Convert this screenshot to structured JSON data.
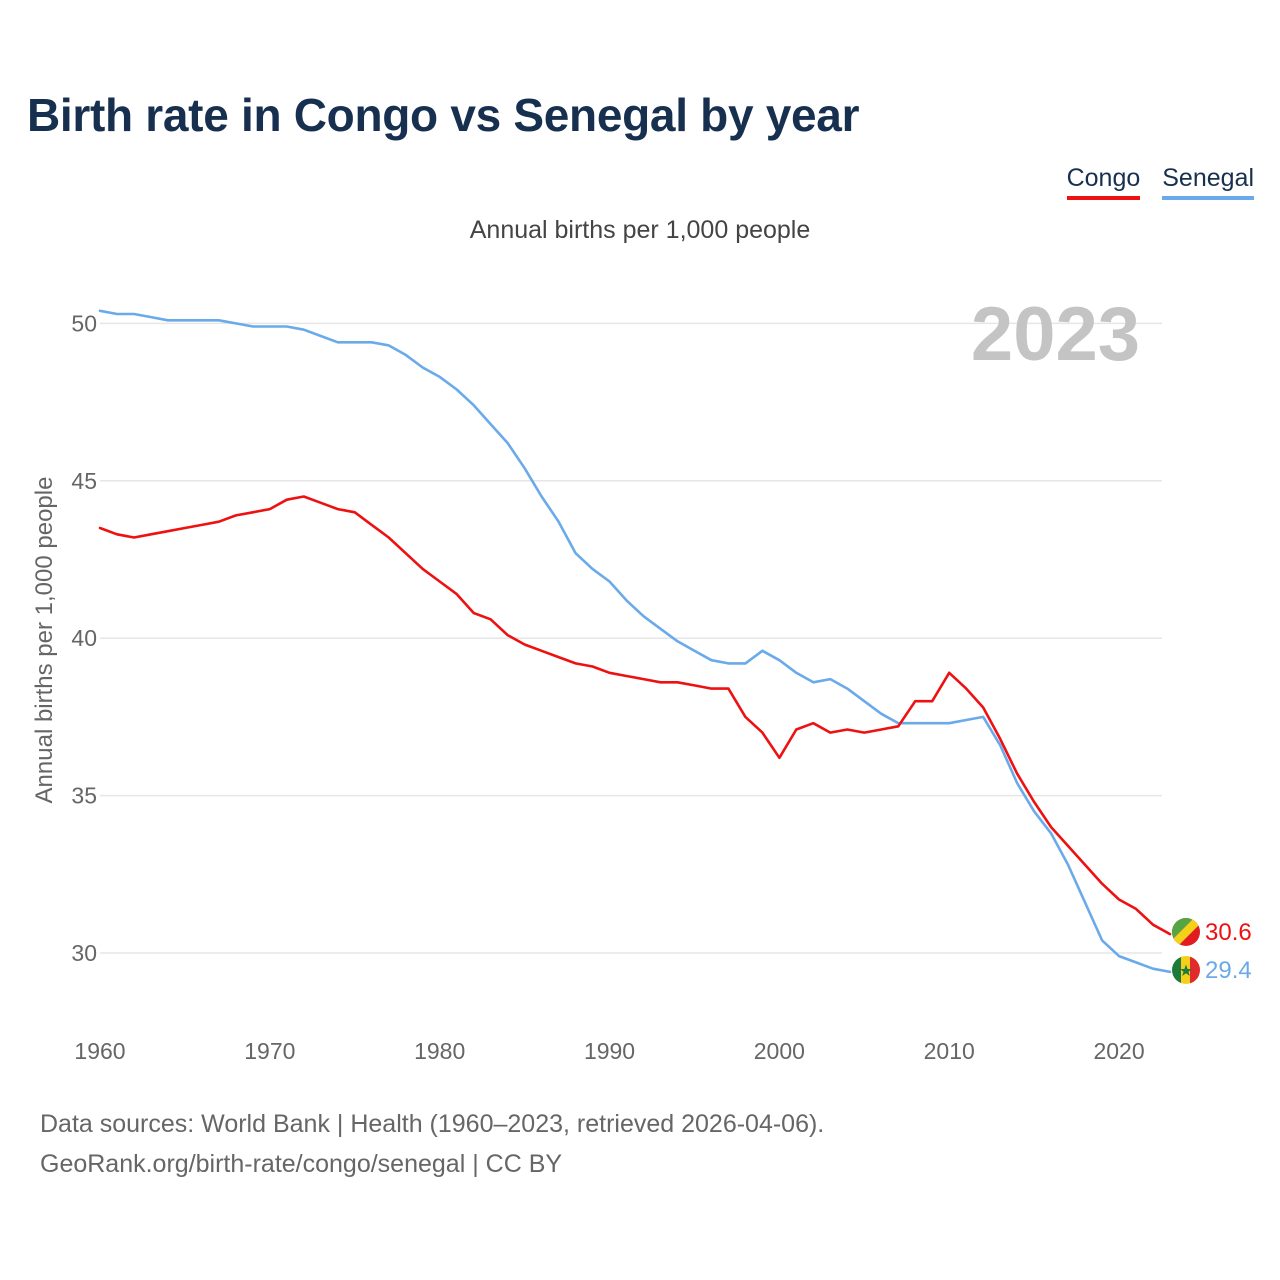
{
  "title": "Birth rate in Congo vs Senegal by year",
  "subtitle": "Annual births per 1,000 people",
  "footer": {
    "line1": "Data sources: World Bank | Health (1960–2023, retrieved 2026-04-06).",
    "line2": "GeoRank.org/birth-rate/congo/senegal | CC BY"
  },
  "chart_data": {
    "type": "line",
    "title": "Birth rate in Congo vs Senegal by year",
    "subtitle": "Annual births per 1,000 people",
    "xlabel": "",
    "ylabel": "Annual births per 1,000 people",
    "xlim": [
      1960,
      2023
    ],
    "ylim": [
      28,
      51
    ],
    "yticks": [
      30,
      35,
      40,
      45,
      50
    ],
    "xticks": [
      1960,
      1970,
      1980,
      1990,
      2000,
      2010,
      2020
    ],
    "grid": true,
    "year_label": "2023",
    "legend_position": "top-right",
    "x": [
      1960,
      1961,
      1962,
      1963,
      1964,
      1965,
      1966,
      1967,
      1968,
      1969,
      1970,
      1971,
      1972,
      1973,
      1974,
      1975,
      1976,
      1977,
      1978,
      1979,
      1980,
      1981,
      1982,
      1983,
      1984,
      1985,
      1986,
      1987,
      1988,
      1989,
      1990,
      1991,
      1992,
      1993,
      1994,
      1995,
      1996,
      1997,
      1998,
      1999,
      2000,
      2001,
      2002,
      2003,
      2004,
      2005,
      2006,
      2007,
      2008,
      2009,
      2010,
      2011,
      2012,
      2013,
      2014,
      2015,
      2016,
      2017,
      2018,
      2019,
      2020,
      2021,
      2022,
      2023
    ],
    "series": [
      {
        "name": "Congo",
        "color": "#ee1111",
        "end_label": "30.6",
        "flag": "congo-flag-icon",
        "values": [
          43.5,
          43.3,
          43.2,
          43.3,
          43.4,
          43.5,
          43.6,
          43.7,
          43.9,
          44.0,
          44.1,
          44.4,
          44.5,
          44.3,
          44.1,
          44.0,
          43.6,
          43.2,
          42.7,
          42.2,
          41.8,
          41.4,
          40.8,
          40.6,
          40.1,
          39.8,
          39.6,
          39.4,
          39.2,
          39.1,
          38.9,
          38.8,
          38.7,
          38.6,
          38.6,
          38.5,
          38.4,
          38.4,
          37.5,
          37.0,
          36.2,
          37.1,
          37.3,
          37.0,
          37.1,
          37.0,
          37.1,
          37.2,
          38.0,
          38.0,
          38.9,
          38.4,
          37.8,
          36.8,
          35.7,
          34.8,
          34.0,
          33.4,
          32.8,
          32.2,
          31.7,
          31.4,
          30.9,
          30.6
        ]
      },
      {
        "name": "Senegal",
        "color": "#6aaaea",
        "end_label": "29.4",
        "flag": "senegal-flag-icon",
        "values": [
          50.4,
          50.3,
          50.3,
          50.2,
          50.1,
          50.1,
          50.1,
          50.1,
          50.0,
          49.9,
          49.9,
          49.9,
          49.8,
          49.6,
          49.4,
          49.4,
          49.4,
          49.3,
          49.0,
          48.6,
          48.3,
          47.9,
          47.4,
          46.8,
          46.2,
          45.4,
          44.5,
          43.7,
          42.7,
          42.2,
          41.8,
          41.2,
          40.7,
          40.3,
          39.9,
          39.6,
          39.3,
          39.2,
          39.2,
          39.6,
          39.3,
          38.9,
          38.6,
          38.7,
          38.4,
          38.0,
          37.6,
          37.3,
          37.3,
          37.3,
          37.3,
          37.4,
          37.5,
          36.6,
          35.4,
          34.5,
          33.8,
          32.8,
          31.6,
          30.4,
          29.9,
          29.7,
          29.5,
          29.4
        ]
      }
    ]
  }
}
